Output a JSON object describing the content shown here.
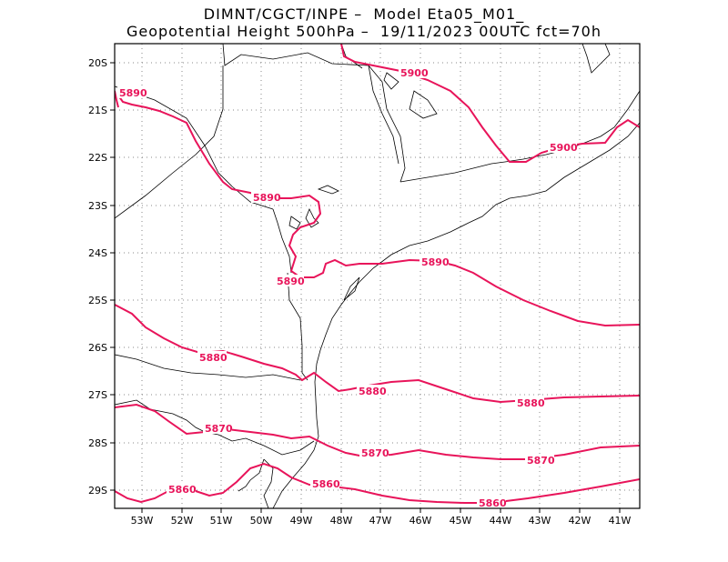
{
  "header": {
    "line1": "DIMNT/CGCT/INPE –  Model Eta05_M01_",
    "line2": "Geopotential Height 500hPa –  19/11/2023 00UTC fct=70h"
  },
  "map": {
    "lon_ticks": [
      "53W",
      "52W",
      "51W",
      "50W",
      "49W",
      "48W",
      "47W",
      "46W",
      "45W",
      "44W",
      "43W",
      "42W",
      "41W"
    ],
    "lat_ticks": [
      "20S",
      "21S",
      "22S",
      "23S",
      "24S",
      "25S",
      "26S",
      "27S",
      "28S",
      "29S"
    ],
    "contour_color": "#e8145a",
    "contour_labels": [
      "5900",
      "5900",
      "5890",
      "5890",
      "5890",
      "5890",
      "5880",
      "5880",
      "5880",
      "5870",
      "5870",
      "5870",
      "5860",
      "5860",
      "5860"
    ]
  }
}
